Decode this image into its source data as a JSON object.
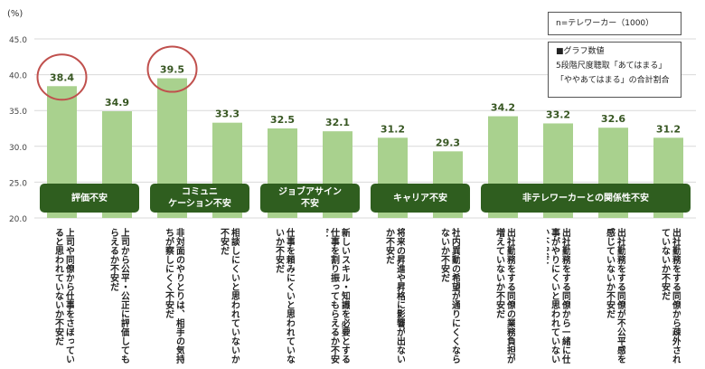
{
  "chart_data": {
    "type": "bar",
    "unit_label": "(%)",
    "ylim": [
      20.0,
      45.0
    ],
    "yticks": [
      "20.0",
      "25.0",
      "30.0",
      "35.0",
      "40.0",
      "45.0"
    ],
    "values": [
      38.4,
      34.9,
      39.5,
      33.3,
      32.5,
      32.1,
      31.2,
      29.3,
      34.2,
      33.2,
      32.6,
      31.2
    ],
    "value_labels": [
      "38.4",
      "34.9",
      "39.5",
      "33.3",
      "32.5",
      "32.1",
      "31.2",
      "29.3",
      "34.2",
      "33.2",
      "32.6",
      "31.2"
    ],
    "highlighted_bars": [
      0,
      2
    ],
    "categories": [
      "上司や同僚から仕事をさぼっていると思われていないか不安だ",
      "上司から公平・公正に評価してもらえるか不安だ",
      "非対面のやりとりは、相手の気持ちが察しにくく不安だ",
      "相談しにくいと思われていないか不安だ",
      "仕事を頼みにくいと思われていないか不安だ",
      "新しいスキル・知識を必要とする仕事を割り振ってもらえるか不安だ",
      "将来の昇進や昇格に影響が出ないか不安だ",
      "社内異動の希望が通りにくくならないか不安だ",
      "出社勤務をする同僚の業務負担が増えていないか不安だ",
      "出社勤務をする同僚から一緒に仕事がやりにくいと思われていないか不安だ",
      "出社勤務をする同僚が不公平感を感じていないか不安だ",
      "出社勤務をする同僚から疎外されていないか不安だ"
    ],
    "groups": [
      {
        "label": "評価不安",
        "start": 0,
        "end": 1
      },
      {
        "label": "コミュニ\nケーション不安",
        "start": 2,
        "end": 3
      },
      {
        "label": "ジョブアサイン\n不安",
        "start": 4,
        "end": 5
      },
      {
        "label": "キャリア不安",
        "start": 6,
        "end": 7
      },
      {
        "label": "非テレワーカーとの関係性不安",
        "start": 8,
        "end": 11
      }
    ],
    "colors": {
      "bar": "#a9d18e",
      "value_text": "#385723",
      "circle": "#c0504d",
      "group_bg": "#2f5e1f"
    },
    "grid": true
  },
  "notes": {
    "sample": "n=テレワーカー（1000）",
    "desc_lines": [
      "■グラフ数値",
      "5段階尺度聴取「あてはまる」",
      "「ややあてはまる」の合計割合"
    ]
  }
}
